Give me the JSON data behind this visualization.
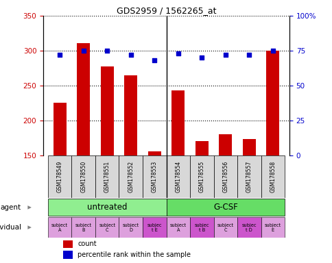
{
  "title": "GDS2959 / 1562265_at",
  "samples": [
    "GSM178549",
    "GSM178550",
    "GSM178551",
    "GSM178552",
    "GSM178553",
    "GSM178554",
    "GSM178555",
    "GSM178556",
    "GSM178557",
    "GSM178558"
  ],
  "counts": [
    226,
    311,
    278,
    265,
    156,
    243,
    171,
    180,
    174,
    300
  ],
  "percentile_ranks": [
    72,
    75,
    75,
    72,
    68,
    73,
    70,
    72,
    72,
    75
  ],
  "ylim_left": [
    150,
    350
  ],
  "ylim_right": [
    0,
    100
  ],
  "yticks_left": [
    150,
    200,
    250,
    300,
    350
  ],
  "yticks_right": [
    0,
    25,
    50,
    75,
    100
  ],
  "agent_groups": [
    {
      "label": "untreated",
      "start": 0,
      "end": 5,
      "color": "#90EE90"
    },
    {
      "label": "G-CSF",
      "start": 5,
      "end": 10,
      "color": "#66DD66"
    }
  ],
  "individuals": [
    "subject\nA",
    "subject\nB",
    "subject\nC",
    "subject\nD",
    "subjec\nt E",
    "subject\nA",
    "subjec\nt B",
    "subject\nC",
    "subjec\nt D",
    "subject\nE"
  ],
  "individual_colors": [
    "#DDA0DD",
    "#DDA0DD",
    "#DDA0DD",
    "#DDA0DD",
    "#CC55CC",
    "#DDA0DD",
    "#CC55CC",
    "#DDA0DD",
    "#CC55CC",
    "#DDA0DD"
  ],
  "bar_color": "#CC0000",
  "dot_color": "#0000CC",
  "axis_label_color_left": "#CC0000",
  "axis_label_color_right": "#0000CC",
  "bar_width": 0.55,
  "legend_count_color": "#CC0000",
  "legend_dot_color": "#0000CC",
  "gsm_bg_color": "#D8D8D8",
  "separator_col": 4.5
}
